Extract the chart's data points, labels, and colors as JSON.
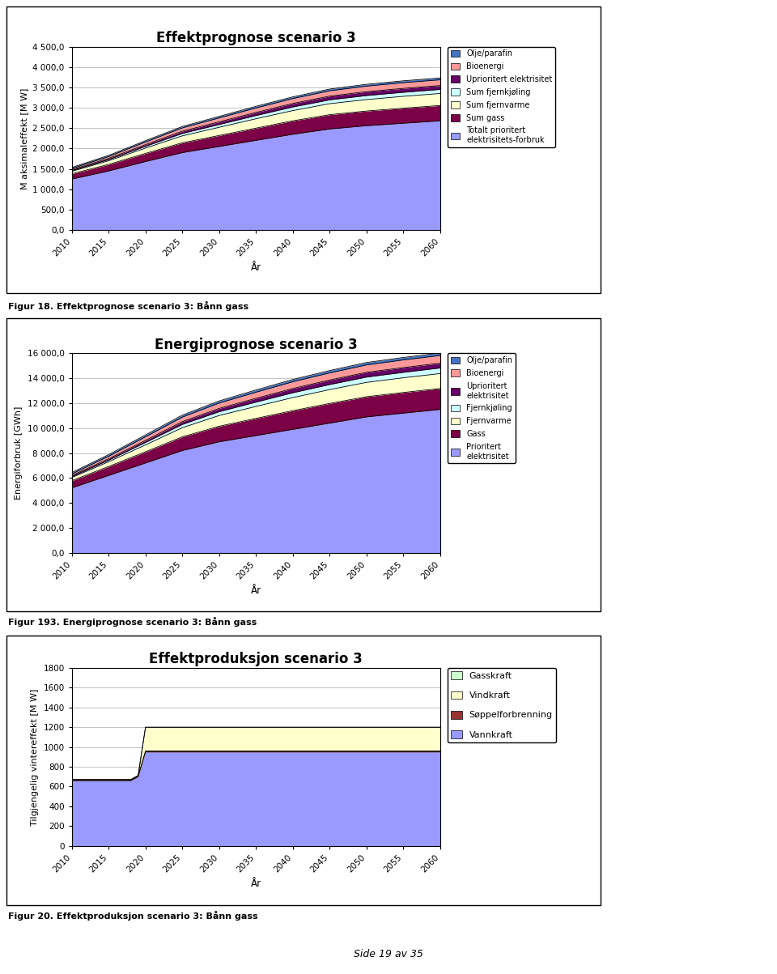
{
  "chart1": {
    "title": "Effektprognose scenario 3",
    "ylabel": "M aksimaleffekt [M W]",
    "xlabel": "År",
    "years": [
      2010,
      2015,
      2020,
      2025,
      2030,
      2035,
      2040,
      2045,
      2050,
      2055,
      2060
    ],
    "ylim": [
      0,
      4500
    ],
    "yticks": [
      0,
      500,
      1000,
      1500,
      2000,
      2500,
      3000,
      3500,
      4000,
      4500
    ],
    "ytick_labels": [
      "0,0",
      "500,0",
      "1 000,0",
      "1 500,0",
      "2 000,0",
      "2 500,0",
      "3 000,0",
      "3 500,0",
      "4 000,0",
      "4 500,0"
    ],
    "series": {
      "Totalt prioritert": [
        1250,
        1450,
        1680,
        1900,
        2050,
        2200,
        2350,
        2480,
        2560,
        2620,
        2680
      ],
      "Sum gass": [
        130,
        160,
        200,
        240,
        270,
        300,
        330,
        350,
        360,
        370,
        375
      ],
      "Sum fjernvarme": [
        60,
        90,
        130,
        170,
        200,
        230,
        250,
        270,
        280,
        290,
        295
      ],
      "Sum fjernkjoling": [
        20,
        30,
        45,
        60,
        70,
        80,
        90,
        95,
        100,
        100,
        100
      ],
      "Uprioritert elektrisitet": [
        20,
        28,
        40,
        55,
        65,
        75,
        85,
        90,
        95,
        95,
        95
      ],
      "Bioenergi": [
        30,
        45,
        65,
        80,
        95,
        110,
        120,
        130,
        135,
        140,
        140
      ],
      "Olje/parafin": [
        25,
        28,
        32,
        35,
        38,
        40,
        42,
        44,
        45,
        46,
        46
      ]
    },
    "colors": {
      "Totalt prioritert": "#9999FF",
      "Sum gass": "#7B0045",
      "Sum fjernvarme": "#FFFFCC",
      "Sum fjernkjoling": "#CCFFFF",
      "Uprioritert elektrisitet": "#660066",
      "Bioenergi": "#FF9999",
      "Olje/parafin": "#4472C4"
    },
    "legend_colors": [
      "#4472C4",
      "#FF9999",
      "#660066",
      "#CCFFFF",
      "#FFFFCC",
      "#7B0045",
      "#9999FF"
    ],
    "legend_labels": [
      "Olje/parafin",
      "Bioenergi",
      "Uprioritert elektrisitet",
      "Sum fjernkjøling",
      "Sum fjernvarme",
      "Sum gass",
      "Totalt prioritert\nelektrisitets-forbruk"
    ],
    "figcaption": "Figur 18. Effektprognose scenario 3: Bånn gass"
  },
  "chart2": {
    "title": "Energiprognose scenario 3",
    "ylabel": "Energiforbruk [GWh]",
    "xlabel": "År",
    "years": [
      2010,
      2015,
      2020,
      2025,
      2030,
      2035,
      2040,
      2045,
      2050,
      2055,
      2060
    ],
    "ylim": [
      0,
      16000
    ],
    "yticks": [
      0,
      2000,
      4000,
      6000,
      8000,
      10000,
      12000,
      14000,
      16000
    ],
    "ytick_labels": [
      "0,0",
      "2 000,0",
      "4 000,0",
      "6 000,0",
      "8 000,0",
      "10 000,0",
      "12 000,0",
      "14 000,0",
      "16 000,0"
    ],
    "series": {
      "Prioritert elektrisitet": [
        5200,
        6200,
        7200,
        8200,
        8900,
        9400,
        9900,
        10400,
        10900,
        11200,
        11500
      ],
      "Gass": [
        580,
        720,
        900,
        1100,
        1250,
        1380,
        1500,
        1580,
        1620,
        1660,
        1680
      ],
      "Fjernvarme": [
        250,
        380,
        550,
        730,
        860,
        960,
        1050,
        1110,
        1150,
        1180,
        1200
      ],
      "Fjernkjoling": [
        80,
        130,
        200,
        270,
        310,
        350,
        390,
        410,
        430,
        440,
        450
      ],
      "Uprioritert elektrisitet": [
        80,
        110,
        160,
        220,
        260,
        300,
        340,
        360,
        380,
        380,
        380
      ],
      "Bioenergi": [
        130,
        200,
        290,
        360,
        430,
        490,
        540,
        570,
        590,
        610,
        620
      ],
      "Olje/parafin": [
        110,
        130,
        150,
        160,
        170,
        180,
        185,
        190,
        195,
        200,
        200
      ]
    },
    "colors": {
      "Prioritert elektrisitet": "#9999FF",
      "Gass": "#7B0045",
      "Fjernvarme": "#FFFFCC",
      "Fjernkjoling": "#CCFFFF",
      "Uprioritert elektrisitet": "#660066",
      "Bioenergi": "#FF9999",
      "Olje/parafin": "#4472C4"
    },
    "legend_colors": [
      "#4472C4",
      "#FF9999",
      "#660066",
      "#CCFFFF",
      "#FFFFCC",
      "#7B0045",
      "#9999FF"
    ],
    "legend_labels": [
      "Olje/parafin",
      "Bioenergi",
      "Uprioritert\nelektrisitet",
      "Fjernkjøling",
      "Fjernvarme",
      "Gass",
      "Prioritert\nelektrisitet"
    ],
    "figcaption": "Figur 193. Energiprognose scenario 3: Bånn gass"
  },
  "chart3": {
    "title": "Effektproduksjon scenario 3",
    "ylabel": "Tilgjengelig vintereffekt [M W]",
    "xlabel": "År",
    "years": [
      2010,
      2013,
      2014,
      2015,
      2018,
      2019,
      2020,
      2021,
      2060
    ],
    "ylim": [
      0,
      1800
    ],
    "yticks": [
      0,
      200,
      400,
      600,
      800,
      1000,
      1200,
      1400,
      1600,
      1800
    ],
    "series": {
      "Vannkraft": [
        660,
        660,
        660,
        660,
        660,
        700,
        950,
        950,
        950
      ],
      "Soeppelforbrenning": [
        10,
        10,
        10,
        10,
        10,
        10,
        10,
        10,
        10
      ],
      "Vindkraft": [
        0,
        0,
        0,
        0,
        0,
        0,
        240,
        240,
        240
      ],
      "Gasskraft": [
        0,
        0,
        0,
        0,
        0,
        0,
        0,
        0,
        0
      ]
    },
    "colors": {
      "Gasskraft": "#CCFFCC",
      "Vindkraft": "#FFFFCC",
      "Soeppelforbrenning": "#993333",
      "Vannkraft": "#9999FF"
    },
    "legend_colors": [
      "#CCFFCC",
      "#FFFFCC",
      "#993333",
      "#9999FF"
    ],
    "legend_labels": [
      "Gasskraft",
      "Vindkraft",
      "Søppelforbrenning",
      "Vannkraft"
    ],
    "figcaption": "Figur 20. Effektproduksjon scenario 3: Bånn gass"
  },
  "page_footer": "Side 19 av 35",
  "background_color": "#FFFFFF"
}
